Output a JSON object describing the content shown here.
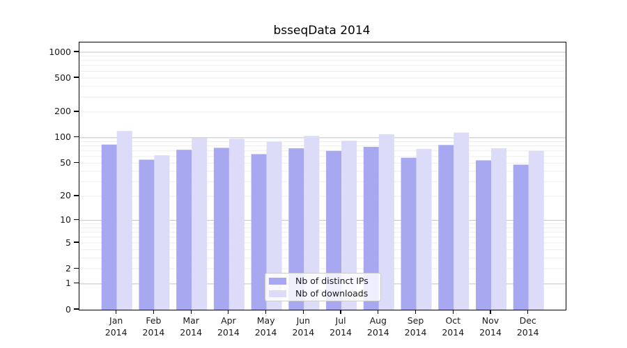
{
  "chart_data": {
    "type": "bar",
    "title": "bsseqData 2014",
    "categories": [
      "Jan 2014",
      "Feb 2014",
      "Mar 2014",
      "Apr 2014",
      "May 2014",
      "Jun 2014",
      "Jul 2014",
      "Aug 2014",
      "Sep 2014",
      "Oct 2014",
      "Nov 2014",
      "Dec 2014"
    ],
    "series": [
      {
        "name": "Nb of distinct IPs",
        "color": "#a8a8f0",
        "values": [
          83,
          55,
          72,
          76,
          64,
          75,
          70,
          78,
          58,
          82,
          54,
          48
        ]
      },
      {
        "name": "Nb of downloads",
        "color": "#dcdcf8",
        "values": [
          120,
          62,
          99,
          97,
          90,
          105,
          92,
          110,
          74,
          115,
          75,
          70
        ]
      }
    ],
    "y_ticks": [
      0,
      1,
      2,
      5,
      10,
      20,
      50,
      100,
      200,
      500,
      1000
    ],
    "ylim": [
      0,
      1000
    ],
    "y_scale": "log1p",
    "grid": "on",
    "grid_major_color": "#c2c2c2",
    "grid_minor_color": "#ededed",
    "axis_color": "#000000",
    "text_color": "#1a1a1a",
    "xlabel": "",
    "ylabel": "",
    "legend_position": "bottom-center"
  }
}
